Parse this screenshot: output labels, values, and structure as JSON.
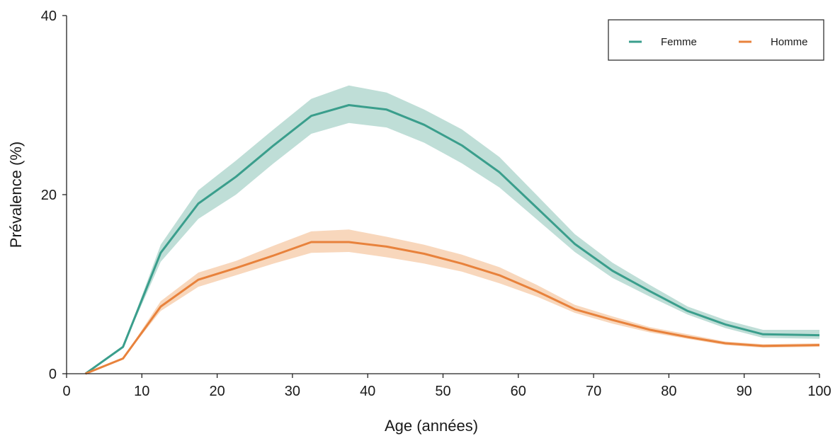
{
  "chart_data": {
    "type": "line",
    "xlabel": "Age (années)",
    "ylabel": "Prévalence (%)",
    "xlim": [
      0,
      100
    ],
    "ylim": [
      0,
      40
    ],
    "x_ticks": [
      "0",
      "10",
      "20",
      "30",
      "40",
      "50",
      "60",
      "70",
      "80",
      "90",
      "100"
    ],
    "y_ticks": [
      "0",
      "20",
      "40"
    ],
    "grid": false,
    "legend_position": "top-right",
    "x": [
      2.5,
      7.5,
      12.5,
      17.5,
      22.5,
      27.5,
      32.5,
      37.5,
      42.5,
      47.5,
      52.5,
      57.5,
      62.5,
      67.5,
      72.5,
      77.5,
      82.5,
      87.5,
      92.5,
      100
    ],
    "series": [
      {
        "name": "Femme",
        "color": "#3a9e8c",
        "band_color": "#a9d3c9",
        "values": [
          0,
          3.0,
          13.5,
          19.0,
          22.0,
          25.5,
          28.8,
          30.0,
          29.5,
          27.8,
          25.5,
          22.5,
          18.5,
          14.5,
          11.5,
          9.2,
          7.0,
          5.5,
          4.4,
          4.3
        ],
        "lower": [
          0,
          3.0,
          12.5,
          17.3,
          20.0,
          23.5,
          26.8,
          28.0,
          27.5,
          25.8,
          23.5,
          20.8,
          17.2,
          13.6,
          10.7,
          8.6,
          6.6,
          5.1,
          4.0,
          3.9
        ],
        "upper": [
          0,
          3.0,
          14.4,
          20.5,
          23.8,
          27.3,
          30.7,
          32.2,
          31.4,
          29.5,
          27.3,
          24.2,
          19.9,
          15.6,
          12.4,
          9.9,
          7.5,
          6.0,
          4.9,
          4.9
        ]
      },
      {
        "name": "Homme",
        "color": "#e8823c",
        "band_color": "#f6c9a6",
        "values": [
          0,
          1.7,
          7.5,
          10.5,
          11.8,
          13.2,
          14.7,
          14.7,
          14.2,
          13.4,
          12.3,
          11.0,
          9.2,
          7.2,
          6.0,
          4.9,
          4.1,
          3.4,
          3.1,
          3.2
        ],
        "lower": [
          0,
          1.7,
          7.0,
          9.7,
          11.0,
          12.3,
          13.5,
          13.6,
          13.0,
          12.3,
          11.4,
          10.1,
          8.6,
          6.8,
          5.6,
          4.6,
          3.9,
          3.2,
          2.9,
          3.0
        ],
        "upper": [
          0,
          1.7,
          8.1,
          11.3,
          12.6,
          14.3,
          15.9,
          16.1,
          15.3,
          14.4,
          13.3,
          11.9,
          9.9,
          7.7,
          6.4,
          5.2,
          4.4,
          3.6,
          3.3,
          3.4
        ]
      }
    ]
  }
}
